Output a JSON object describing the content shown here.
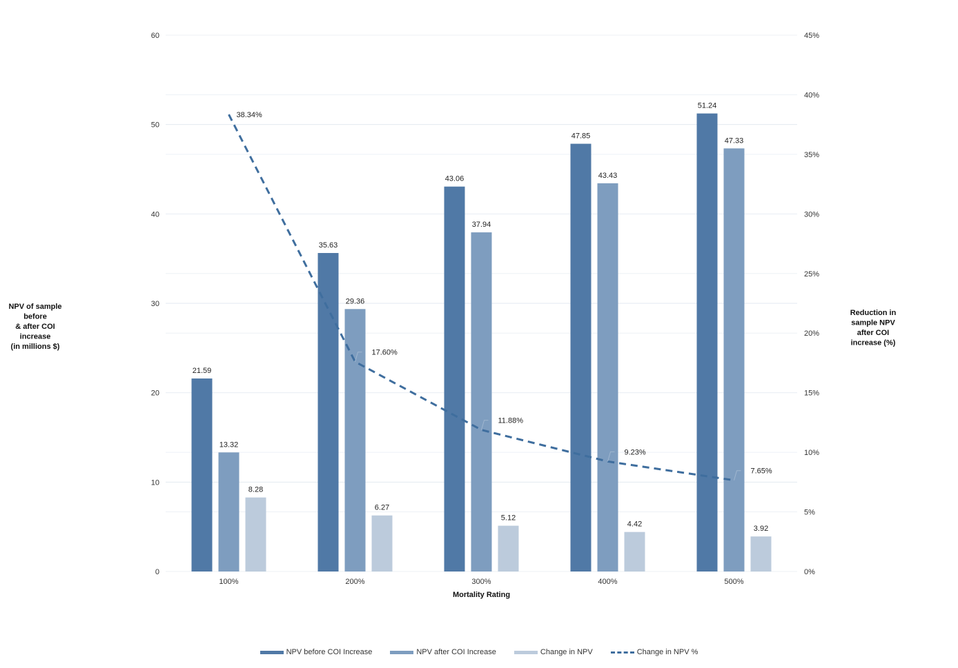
{
  "chart_data": {
    "type": "bar",
    "title": "",
    "xlabel": "Mortality Rating",
    "ylabel": [
      "NPV of sample",
      "before",
      "& after COI",
      "increase",
      "(in millions $)"
    ],
    "y2label": [
      "Reduction in",
      "sample NPV",
      "after COI",
      "increase (%)"
    ],
    "categories": [
      "100%",
      "200%",
      "300%",
      "400%",
      "500%"
    ],
    "ylim": [
      0,
      60
    ],
    "yticks": [
      0,
      10,
      20,
      30,
      40,
      50,
      60
    ],
    "y2lim": [
      0,
      45
    ],
    "y2ticks": [
      "0%",
      "5%",
      "10%",
      "15%",
      "20%",
      "25%",
      "30%",
      "35%",
      "40%",
      "45%"
    ],
    "grid": true,
    "legend_position": "bottom",
    "series": [
      {
        "name": "NPV before COI Increase",
        "axis": "left",
        "kind": "bar",
        "color": "#5079a6",
        "values": [
          21.59,
          35.63,
          43.06,
          47.85,
          51.24
        ],
        "labels": [
          "21.59",
          "35.63",
          "43.06",
          "47.85",
          "51.24"
        ]
      },
      {
        "name": "NPV after COI Increase",
        "axis": "left",
        "kind": "bar",
        "color": "#7e9dbf",
        "values": [
          13.32,
          29.36,
          37.94,
          43.43,
          47.33
        ],
        "labels": [
          "13.32",
          "29.36",
          "37.94",
          "43.43",
          "47.33"
        ]
      },
      {
        "name": "Change in NPV",
        "axis": "left",
        "kind": "bar",
        "color": "#bccbdc",
        "values": [
          8.28,
          6.27,
          5.12,
          4.42,
          3.92
        ],
        "labels": [
          "8.28",
          "6.27",
          "5.12",
          "4.42",
          "3.92"
        ]
      },
      {
        "name": "Change in NPV %",
        "axis": "right",
        "kind": "line-dashed",
        "color": "#3f6e9e",
        "values": [
          38.34,
          17.6,
          11.88,
          9.23,
          7.65
        ],
        "labels": [
          "38.34%",
          "17.60%",
          "11.88%",
          "9.23%",
          "7.65%"
        ]
      }
    ]
  }
}
